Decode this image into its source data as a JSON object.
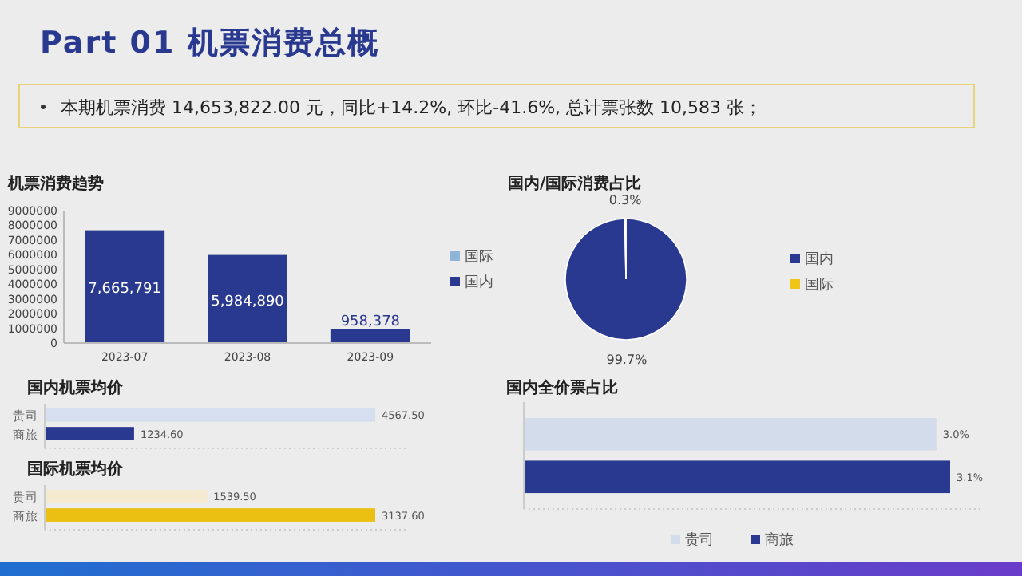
{
  "chart_data": [
    {
      "type": "other",
      "title": "Part 01 机票消费总概",
      "annotations": [
        "本期机票消费 14,653,822.00 元，同比+14.2%, 环比-41.6%, 总计票张数  10,583  张；"
      ]
    },
    {
      "type": "bar",
      "title": "机票消费趋势",
      "categories": [
        "2023-07",
        "2023-08",
        "2023-09"
      ],
      "stacked": true,
      "ylim": [
        0,
        9000000
      ],
      "yticks": [
        0,
        1000000,
        2000000,
        3000000,
        4000000,
        5000000,
        6000000,
        7000000,
        8000000,
        9000000
      ],
      "legend": "right",
      "series": [
        {
          "name": "国内",
          "color": "#2a3990",
          "values": [
            7665791,
            5984890,
            958378
          ],
          "value_labels": [
            "7,665,791",
            "5,984,890",
            "958,378"
          ]
        },
        {
          "name": "国际",
          "color": "#8fb4d9",
          "values": [
            null,
            null,
            null
          ]
        }
      ]
    },
    {
      "type": "pie",
      "title": "国内/国际消费占比",
      "categories": [
        "国内",
        "国际"
      ],
      "values": [
        99.7,
        0.3
      ],
      "colors": [
        "#2a3990",
        "#f0c419"
      ],
      "value_labels": [
        "99.7%",
        "0.3%"
      ],
      "legend": "right"
    },
    {
      "type": "bar",
      "title": "国内机票均价",
      "orientation": "horizontal",
      "categories": [
        "贵司",
        "商旅"
      ],
      "values": [
        4567.5,
        1234.6
      ],
      "colors": [
        "#d5dff0",
        "#2a3990"
      ],
      "value_labels": [
        "4567.50",
        "1234.60"
      ]
    },
    {
      "type": "bar",
      "title": "国际机票均价",
      "orientation": "horizontal",
      "categories": [
        "贵司",
        "商旅"
      ],
      "values": [
        1539.5,
        3137.6
      ],
      "colors": [
        "#f5ead0",
        "#ecc012"
      ],
      "value_labels": [
        "1539.50",
        "3137.60"
      ]
    },
    {
      "type": "bar",
      "title": "国内全价票占比",
      "orientation": "horizontal",
      "categories": [
        null
      ],
      "legend": "bottom",
      "series": [
        {
          "name": "贵司",
          "color": "#d3dcea",
          "values": [
            3.0
          ],
          "value_labels": [
            "3.0%"
          ]
        },
        {
          "name": "商旅",
          "color": "#2a3990",
          "values": [
            3.1
          ],
          "value_labels": [
            "3.1%"
          ]
        }
      ]
    }
  ]
}
